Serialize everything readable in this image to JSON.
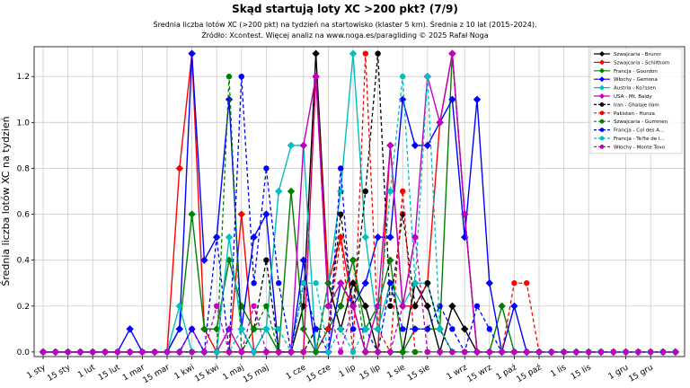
{
  "chart_data": {
    "type": "line",
    "title": "Skąd startują loty XC >200 pkt? (7/9)",
    "subtitle_lines": [
      "Średnia liczba lotów XC (>200 pkt) na tydzień na startowisko (klaster 5 km). Średnia z 10 lat (2015–2024).",
      "Źródło: Xcontest. Więcej analiz na www.noga.es/paragliding © 2025 Rafał Noga"
    ],
    "xlabel": "",
    "ylabel": "Średnia liczba lotów XC na tydzień",
    "ylim": [
      -0.02,
      1.33
    ],
    "yticks": [
      0.0,
      0.2,
      0.4,
      0.6,
      0.8,
      1.0,
      1.2
    ],
    "ytick_labels": [
      "0.0",
      "0.2",
      "0.4",
      "0.6",
      "0.8",
      "1.0",
      "1.2"
    ],
    "x_count": 52,
    "xtick_positions": [
      0,
      2,
      4,
      6,
      8,
      10,
      12,
      14,
      16,
      18,
      21,
      23,
      25,
      27,
      29,
      31,
      34,
      36,
      38,
      40,
      42,
      44,
      47,
      49
    ],
    "xtick_labels": [
      "1 sty",
      "15 sty",
      "1 lut",
      "15 lut",
      "1 mar",
      "15 mar",
      "1 kwi",
      "15 kwi",
      "1 maj",
      "15 maj",
      "1 cze",
      "15 cze",
      "1 lip",
      "15 lip",
      "1 sie",
      "15 sie",
      "1 wrz",
      "15 wrz",
      "1 paź",
      "15 paź",
      "1 lis",
      "15 lis",
      "1 gru",
      "15 gru"
    ],
    "grid": true,
    "legend_position": "top-right",
    "series": [
      {
        "name": "Szwajcaria - Brunni",
        "color": "#000000",
        "dash": false,
        "marker": "diamond",
        "points": [
          [
            21,
            0.2
          ],
          [
            22,
            1.3
          ],
          [
            23,
            0.3
          ],
          [
            24,
            0.1
          ],
          [
            25,
            0.3
          ],
          [
            26,
            0.2
          ],
          [
            30,
            0.3
          ],
          [
            31,
            0.2
          ],
          [
            33,
            0.2
          ],
          [
            34,
            0.1
          ]
        ]
      },
      {
        "name": "Szwajcaria - Schilthorn",
        "color": "#ff0000",
        "dash": false,
        "marker": "diamond",
        "points": [
          [
            10,
            0.0
          ],
          [
            11,
            0.8
          ],
          [
            12,
            1.3
          ],
          [
            13,
            0.1
          ],
          [
            14,
            0.0
          ],
          [
            15,
            0.0
          ],
          [
            16,
            0.6
          ],
          [
            17,
            0.0
          ],
          [
            20,
            0.0
          ],
          [
            21,
            0.0
          ],
          [
            22,
            1.2
          ],
          [
            23,
            0.3
          ],
          [
            24,
            0.5
          ],
          [
            25,
            0.2
          ],
          [
            28,
            0.9
          ],
          [
            29,
            0.2
          ],
          [
            30,
            0.2
          ],
          [
            31,
            0.3
          ],
          [
            32,
            1.0
          ],
          [
            33,
            1.3
          ],
          [
            34,
            0.6
          ],
          [
            35,
            0.0
          ]
        ]
      },
      {
        "name": "Francja - Gourdon",
        "color": "#008000",
        "dash": false,
        "marker": "diamond",
        "points": [
          [
            11,
            0.1
          ],
          [
            12,
            0.6
          ],
          [
            13,
            0.1
          ],
          [
            14,
            0.1
          ],
          [
            15,
            0.4
          ],
          [
            16,
            0.2
          ],
          [
            17,
            0.1
          ],
          [
            18,
            0.1
          ],
          [
            19,
            0.0
          ],
          [
            20,
            0.7
          ],
          [
            21,
            0.1
          ],
          [
            22,
            0.0
          ],
          [
            23,
            0.1
          ],
          [
            24,
            0.2
          ],
          [
            25,
            0.4
          ],
          [
            26,
            0.1
          ],
          [
            27,
            0.2
          ],
          [
            28,
            0.4
          ],
          [
            29,
            0.0
          ],
          [
            30,
            0.1
          ],
          [
            31,
            0.1
          ],
          [
            32,
            0.1
          ],
          [
            33,
            1.3
          ],
          [
            34,
            0.6
          ],
          [
            35,
            0.0
          ],
          [
            36,
            0.0
          ],
          [
            37,
            0.2
          ],
          [
            38,
            0.0
          ]
        ]
      },
      {
        "name": "Włochy - Gemona",
        "color": "#0000ff",
        "dash": false,
        "marker": "diamond",
        "points": [
          [
            7,
            0.1
          ],
          [
            8,
            0.0
          ],
          [
            11,
            0.1
          ],
          [
            12,
            1.3
          ],
          [
            13,
            0.4
          ],
          [
            14,
            0.5
          ],
          [
            15,
            1.1
          ],
          [
            16,
            0.1
          ],
          [
            17,
            0.5
          ],
          [
            18,
            0.6
          ],
          [
            19,
            0.0
          ],
          [
            20,
            0.0
          ],
          [
            21,
            0.4
          ],
          [
            22,
            0.0
          ],
          [
            23,
            0.0
          ],
          [
            24,
            0.3
          ],
          [
            25,
            0.2
          ],
          [
            26,
            0.3
          ],
          [
            27,
            0.5
          ],
          [
            28,
            0.5
          ],
          [
            29,
            1.1
          ],
          [
            30,
            0.9
          ],
          [
            31,
            0.9
          ],
          [
            32,
            1.0
          ],
          [
            33,
            1.1
          ],
          [
            34,
            0.5
          ],
          [
            35,
            1.1
          ],
          [
            36,
            0.3
          ],
          [
            37,
            0.0
          ],
          [
            38,
            0.2
          ],
          [
            39,
            0.0
          ]
        ]
      },
      {
        "name": "Austria - Ko?ssen",
        "color": "#00bfbf",
        "dash": false,
        "marker": "diamond",
        "points": [
          [
            11,
            0.2
          ],
          [
            12,
            0.0
          ],
          [
            15,
            0.5
          ],
          [
            16,
            0.1
          ],
          [
            17,
            0.0
          ],
          [
            18,
            0.1
          ],
          [
            19,
            0.7
          ],
          [
            20,
            0.9
          ],
          [
            21,
            0.9
          ],
          [
            22,
            0.0
          ],
          [
            23,
            0.3
          ],
          [
            24,
            0.7
          ],
          [
            25,
            1.3
          ],
          [
            26,
            0.5
          ],
          [
            27,
            0.1
          ],
          [
            28,
            0.3
          ],
          [
            29,
            0.2
          ],
          [
            30,
            0.3
          ],
          [
            31,
            0.3
          ],
          [
            32,
            0.1
          ]
        ]
      },
      {
        "name": "USA - Mt. Baldy",
        "color": "#bf00bf",
        "dash": false,
        "marker": "diamond",
        "points": [
          [
            12,
            0.1
          ],
          [
            13,
            0.0
          ],
          [
            14,
            0.0
          ],
          [
            15,
            0.1
          ],
          [
            16,
            0.0
          ],
          [
            20,
            0.0
          ],
          [
            21,
            0.9
          ],
          [
            22,
            1.2
          ],
          [
            23,
            0.2
          ],
          [
            24,
            0.3
          ],
          [
            25,
            0.2
          ],
          [
            26,
            0.0
          ],
          [
            27,
            0.2
          ],
          [
            28,
            0.9
          ],
          [
            29,
            0.2
          ],
          [
            30,
            0.5
          ],
          [
            31,
            1.2
          ],
          [
            32,
            1.0
          ],
          [
            33,
            1.3
          ],
          [
            34,
            0.6
          ],
          [
            35,
            0.0
          ]
        ]
      },
      {
        "name": "Iran - Ghalaje Ilam",
        "color": "#000000",
        "dash": true,
        "marker": "circle",
        "points": [
          [
            17,
            0.1
          ],
          [
            18,
            0.4
          ],
          [
            19,
            0.0
          ],
          [
            22,
            0.1
          ],
          [
            23,
            0.1
          ],
          [
            24,
            0.6
          ],
          [
            25,
            0.2
          ],
          [
            26,
            0.7
          ],
          [
            27,
            1.3
          ],
          [
            28,
            0.2
          ],
          [
            29,
            0.6
          ],
          [
            30,
            0.2
          ],
          [
            31,
            0.3
          ],
          [
            32,
            0.1
          ]
        ]
      },
      {
        "name": "Pakistan - Hunza",
        "color": "#ff0000",
        "dash": true,
        "marker": "circle",
        "points": [
          [
            21,
            0.0
          ],
          [
            22,
            0.0
          ],
          [
            23,
            0.1
          ],
          [
            24,
            0.5
          ],
          [
            25,
            0.0
          ],
          [
            26,
            1.3
          ],
          [
            27,
            0.1
          ],
          [
            28,
            0.0
          ],
          [
            29,
            0.7
          ],
          [
            30,
            0.0
          ],
          [
            37,
            0.0
          ],
          [
            38,
            0.3
          ],
          [
            39,
            0.3
          ],
          [
            40,
            0.0
          ]
        ]
      },
      {
        "name": "Szwajcaria - Gummen",
        "color": "#008000",
        "dash": true,
        "marker": "circle",
        "points": [
          [
            14,
            0.0
          ],
          [
            15,
            1.2
          ],
          [
            16,
            0.0
          ],
          [
            17,
            0.1
          ],
          [
            18,
            0.2
          ],
          [
            19,
            0.0
          ],
          [
            22,
            0.0
          ],
          [
            23,
            0.3
          ],
          [
            24,
            0.2
          ],
          [
            25,
            0.4
          ],
          [
            26,
            0.0
          ]
        ]
      },
      {
        "name": "Francja - Col des A...",
        "color": "#0000ff",
        "dash": true,
        "marker": "circle",
        "points": [
          [
            12,
            0.1
          ],
          [
            13,
            0.0
          ],
          [
            14,
            0.5
          ],
          [
            15,
            0.0
          ],
          [
            16,
            1.2
          ],
          [
            17,
            0.3
          ],
          [
            18,
            0.8
          ],
          [
            19,
            0.3
          ],
          [
            20,
            0.0
          ],
          [
            21,
            0.3
          ],
          [
            22,
            0.1
          ],
          [
            23,
            0.0
          ],
          [
            24,
            0.8
          ],
          [
            25,
            0.1
          ],
          [
            26,
            0.1
          ],
          [
            27,
            0.0
          ],
          [
            28,
            0.3
          ],
          [
            29,
            0.1
          ],
          [
            30,
            0.1
          ],
          [
            31,
            0.1
          ],
          [
            32,
            0.2
          ],
          [
            33,
            0.1
          ],
          [
            34,
            0.0
          ],
          [
            35,
            0.2
          ],
          [
            36,
            0.1
          ],
          [
            37,
            0.0
          ]
        ]
      },
      {
        "name": "Francja - Te?te de l...",
        "color": "#00bfbf",
        "dash": true,
        "marker": "circle",
        "points": [
          [
            11,
            0.0
          ],
          [
            12,
            0.0
          ],
          [
            13,
            0.0
          ],
          [
            14,
            0.0
          ],
          [
            15,
            0.0
          ],
          [
            16,
            0.1
          ],
          [
            17,
            0.0
          ],
          [
            18,
            0.1
          ],
          [
            19,
            0.1
          ],
          [
            20,
            0.0
          ],
          [
            21,
            0.3
          ],
          [
            22,
            0.3
          ],
          [
            23,
            0.0
          ],
          [
            24,
            0.1
          ],
          [
            25,
            0.0
          ],
          [
            26,
            0.1
          ],
          [
            27,
            0.1
          ],
          [
            28,
            0.7
          ],
          [
            29,
            1.2
          ],
          [
            30,
            0.3
          ],
          [
            31,
            1.2
          ],
          [
            32,
            0.1
          ],
          [
            33,
            0.0
          ]
        ]
      },
      {
        "name": "Włochy - Monte Tovo",
        "color": "#bf00bf",
        "dash": true,
        "marker": "circle",
        "points": [
          [
            13,
            0.0
          ],
          [
            14,
            0.2
          ],
          [
            15,
            0.0
          ],
          [
            16,
            0.0
          ],
          [
            17,
            0.2
          ],
          [
            18,
            0.0
          ],
          [
            21,
            0.0
          ],
          [
            22,
            1.2
          ],
          [
            23,
            0.2
          ],
          [
            24,
            0.0
          ],
          [
            25,
            0.2
          ],
          [
            26,
            0.0
          ],
          [
            27,
            0.0
          ],
          [
            28,
            0.0
          ],
          [
            29,
            0.2
          ],
          [
            30,
            0.5
          ],
          [
            31,
            0.0
          ]
        ]
      }
    ]
  }
}
